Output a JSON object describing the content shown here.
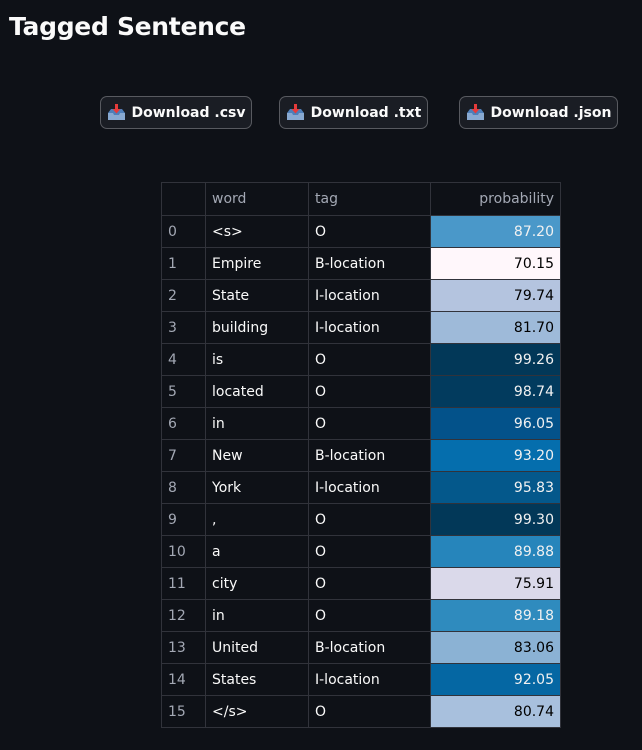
{
  "title": "Tagged Sentence",
  "buttons": {
    "csv": "Download .csv",
    "txt": "Download .txt",
    "json": "Download .json"
  },
  "icon": "inbox-tray-icon",
  "table": {
    "headers": {
      "index": "",
      "word": "word",
      "tag": "tag",
      "probability": "probability"
    },
    "rows": [
      {
        "index": "0",
        "word": "<s>",
        "tag": "O",
        "probability": "87.20",
        "bg": "#4a98c9",
        "fg": "#f1f1f1"
      },
      {
        "index": "1",
        "word": "Empire",
        "tag": "B-location",
        "probability": "70.15",
        "bg": "#fff7fb",
        "fg": "#000000"
      },
      {
        "index": "2",
        "word": "State",
        "tag": "I-location",
        "probability": "79.74",
        "bg": "#b4c4df",
        "fg": "#000000"
      },
      {
        "index": "3",
        "word": "building",
        "tag": "I-location",
        "probability": "81.70",
        "bg": "#9ebad9",
        "fg": "#000000"
      },
      {
        "index": "4",
        "word": "is",
        "tag": "O",
        "probability": "99.26",
        "bg": "#023858",
        "fg": "#f1f1f1"
      },
      {
        "index": "5",
        "word": "located",
        "tag": "O",
        "probability": "98.74",
        "bg": "#023b5e",
        "fg": "#f1f1f1"
      },
      {
        "index": "6",
        "word": "in",
        "tag": "O",
        "probability": "96.05",
        "bg": "#03528a",
        "fg": "#f1f1f1"
      },
      {
        "index": "7",
        "word": "New",
        "tag": "B-location",
        "probability": "93.20",
        "bg": "#056ead",
        "fg": "#f1f1f1"
      },
      {
        "index": "8",
        "word": "York",
        "tag": "I-location",
        "probability": "95.83",
        "bg": "#04588b",
        "fg": "#f1f1f1"
      },
      {
        "index": "9",
        "word": ",",
        "tag": "O",
        "probability": "99.30",
        "bg": "#023858",
        "fg": "#f1f1f1"
      },
      {
        "index": "10",
        "word": "a",
        "tag": "O",
        "probability": "89.88",
        "bg": "#2685bb",
        "fg": "#f1f1f1"
      },
      {
        "index": "11",
        "word": "city",
        "tag": "O",
        "probability": "75.91",
        "bg": "#dad9ea",
        "fg": "#000000"
      },
      {
        "index": "12",
        "word": "in",
        "tag": "O",
        "probability": "89.18",
        "bg": "#2f8bbe",
        "fg": "#f1f1f1"
      },
      {
        "index": "13",
        "word": "United",
        "tag": "B-location",
        "probability": "83.06",
        "bg": "#8bb2d4",
        "fg": "#000000"
      },
      {
        "index": "14",
        "word": "States",
        "tag": "I-location",
        "probability": "92.05",
        "bg": "#0567a3",
        "fg": "#f1f1f1"
      },
      {
        "index": "15",
        "word": "</s>",
        "tag": "O",
        "probability": "80.74",
        "bg": "#a8c0dd",
        "fg": "#000000"
      }
    ]
  }
}
